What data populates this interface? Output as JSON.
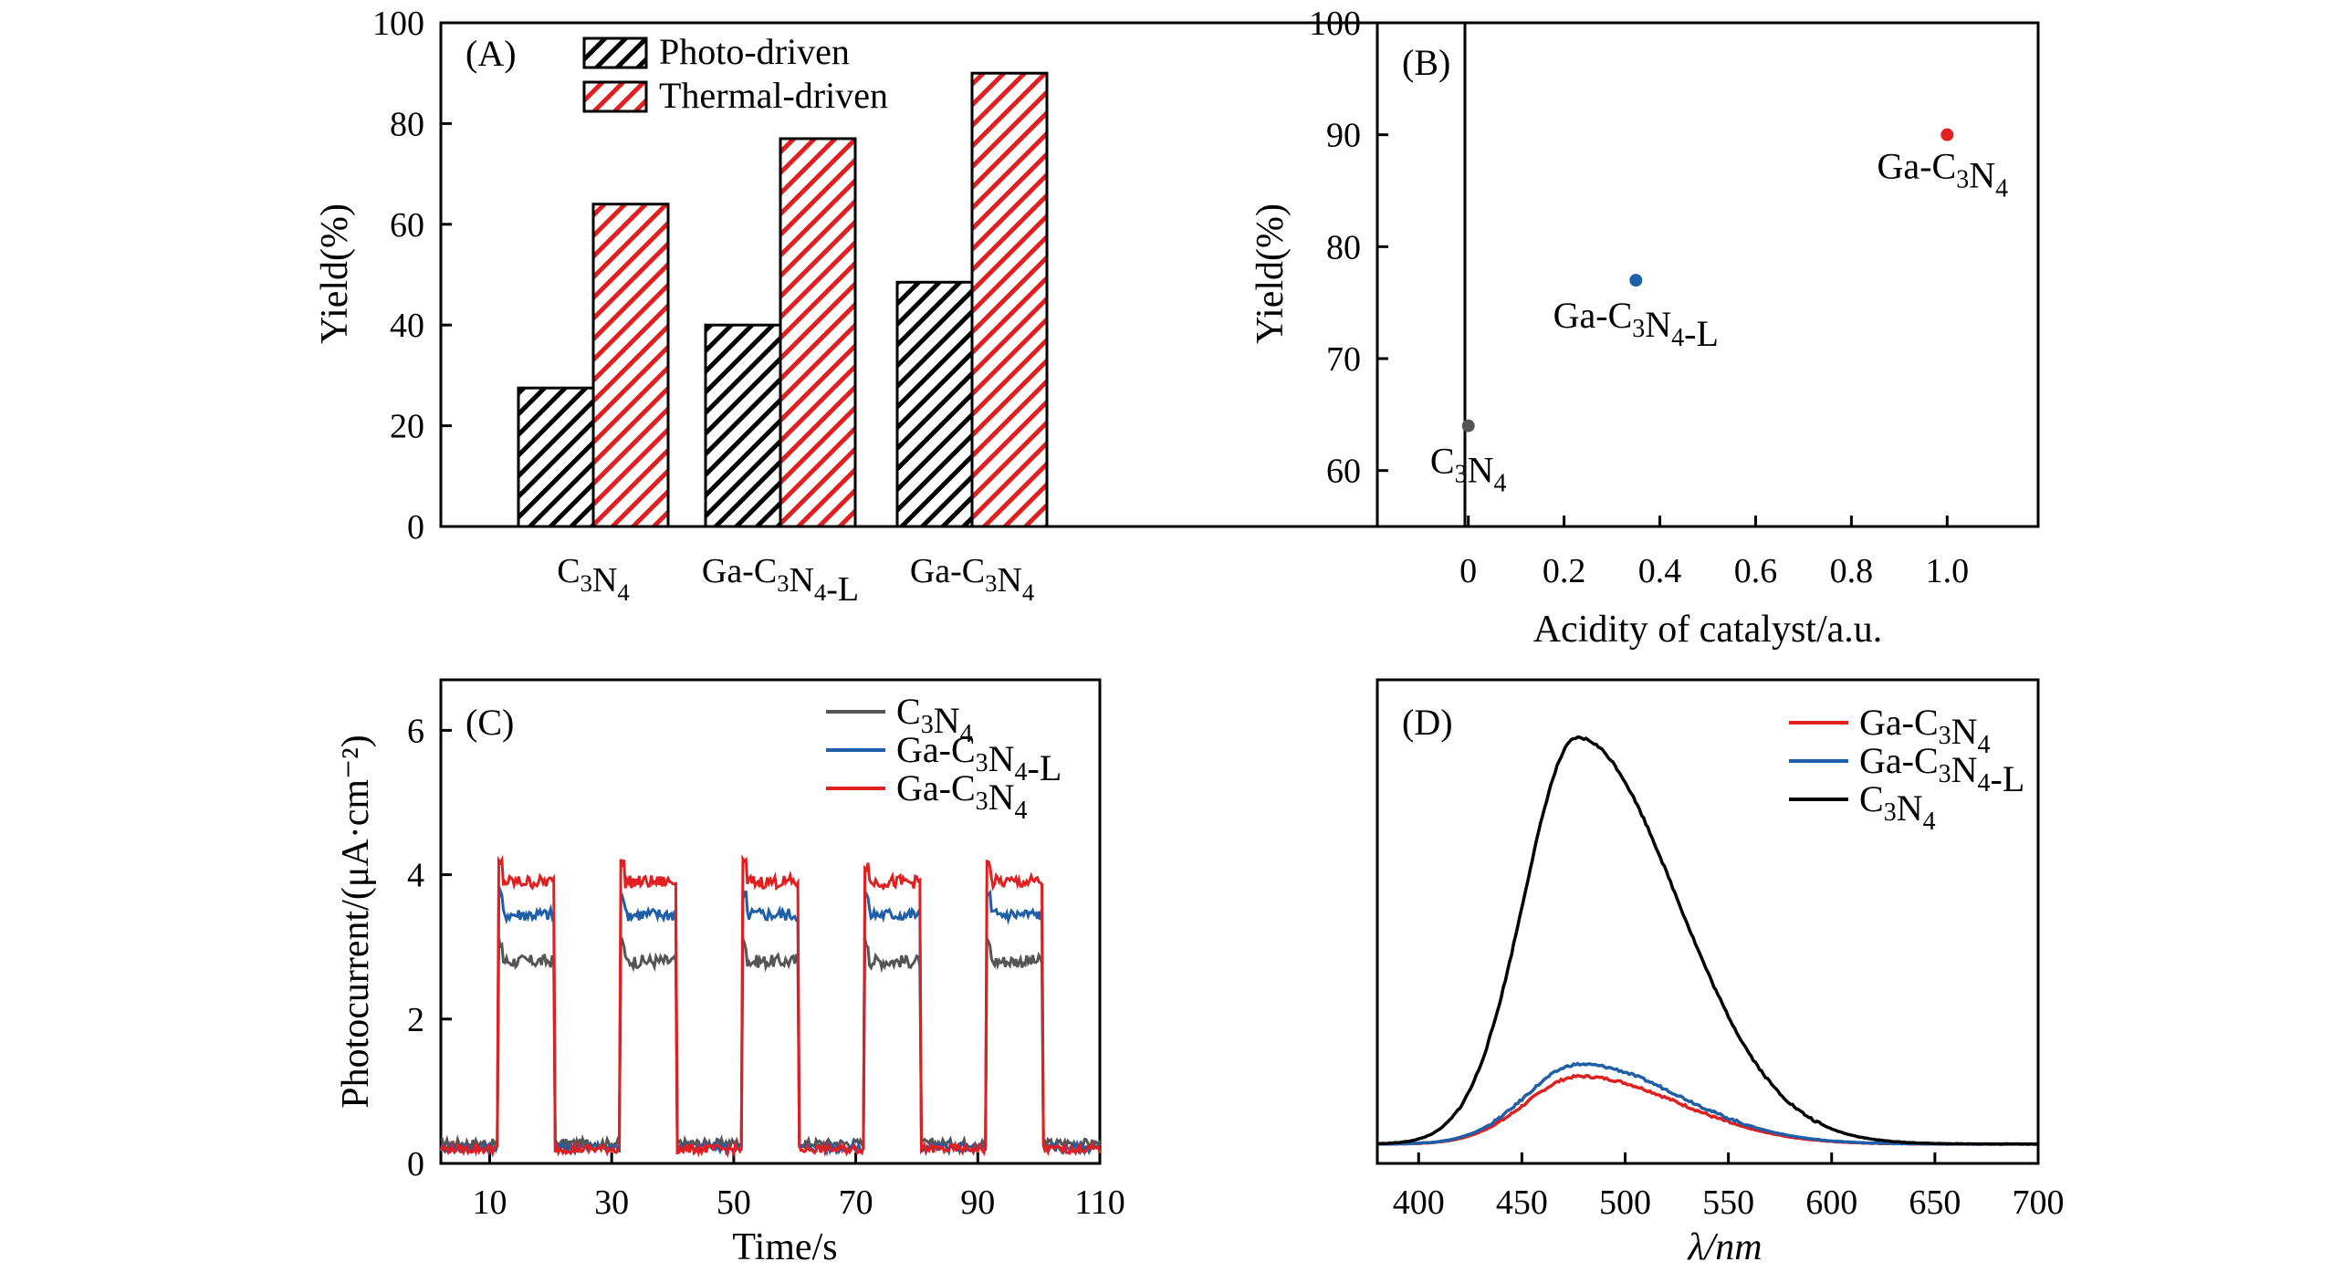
{
  "chart_data": [
    {
      "panel": "(A)",
      "type": "bar",
      "categories": [
        "C3N4",
        "Ga-C3N4-L",
        "Ga-C3N4"
      ],
      "series": [
        {
          "name": "Photo-driven",
          "values": [
            27.5,
            40,
            48.5
          ],
          "color": "#000000",
          "pattern": "hatch"
        },
        {
          "name": "Thermal-driven",
          "values": [
            64,
            77,
            90
          ],
          "color": "#e02020",
          "pattern": "hatch"
        }
      ],
      "ylabel": "Yield(%)",
      "ylim": [
        0,
        100
      ],
      "yticks": [
        0,
        20,
        40,
        60,
        80,
        100
      ],
      "legend": "top-center"
    },
    {
      "panel": "(B)",
      "type": "scatter",
      "points": [
        {
          "label": "C3N4",
          "x": 0,
          "y": 64,
          "color": "#555555"
        },
        {
          "label": "Ga-C3N4-L",
          "x": 0.35,
          "y": 77,
          "color": "#1f5fa8"
        },
        {
          "label": "Ga-C3N4",
          "x": 1.0,
          "y": 90,
          "color": "#e02020"
        }
      ],
      "xlabel": "Acidity of catalyst/a.u.",
      "ylabel": "Yield(%)",
      "xlim": [
        -0.19,
        1.19
      ],
      "ylim": [
        55,
        100
      ],
      "xticks": [
        0,
        0.2,
        0.4,
        0.6,
        0.8,
        1.0
      ],
      "xticklabels": [
        "0",
        "0.2",
        "0.4",
        "0.6",
        "0.8",
        "1.0"
      ],
      "yticks": [
        60,
        70,
        80,
        90,
        100
      ]
    },
    {
      "panel": "(C)",
      "type": "line",
      "xlabel": "Time/s",
      "ylabel": "Photocurrent/(μA·cm⁻²)",
      "xlim": [
        2,
        110
      ],
      "ylim": [
        0,
        6.7
      ],
      "xticks": [
        10,
        30,
        50,
        70,
        90,
        110
      ],
      "yticks": [
        0,
        2,
        4,
        6
      ],
      "light_on_intervals": [
        [
          11.5,
          20.5
        ],
        [
          31.5,
          40.5
        ],
        [
          51.5,
          60.5
        ],
        [
          71.5,
          80.5
        ],
        [
          91.5,
          100.5
        ]
      ],
      "series": [
        {
          "name": "C3N4",
          "color": "#555555",
          "on_level": 2.8,
          "off_level": 0.28
        },
        {
          "name": "Ga-C3N4-L",
          "color": "#1f5fa8",
          "on_level": 3.45,
          "off_level": 0.22
        },
        {
          "name": "Ga-C3N4",
          "color": "#e02020",
          "on_level": 3.9,
          "off_level": 0.2
        }
      ],
      "legend": "top-right"
    },
    {
      "panel": "(D)",
      "type": "line",
      "xlabel": "λ/nm",
      "xlim": [
        380,
        700
      ],
      "xticks": [
        400,
        450,
        500,
        550,
        600,
        650,
        700
      ],
      "ylim": [
        0,
        100
      ],
      "series": [
        {
          "name": "Ga-C3N4",
          "color": "#e02020",
          "peak_x": 478,
          "peak_y": 18
        },
        {
          "name": "Ga-C3N4-L",
          "color": "#1f5fa8",
          "peak_x": 478,
          "peak_y": 20.5
        },
        {
          "name": "C3N4",
          "color": "#000000",
          "peak_x": 477,
          "peak_y": 88
        }
      ],
      "baseline": 4,
      "legend": "top-right"
    }
  ]
}
